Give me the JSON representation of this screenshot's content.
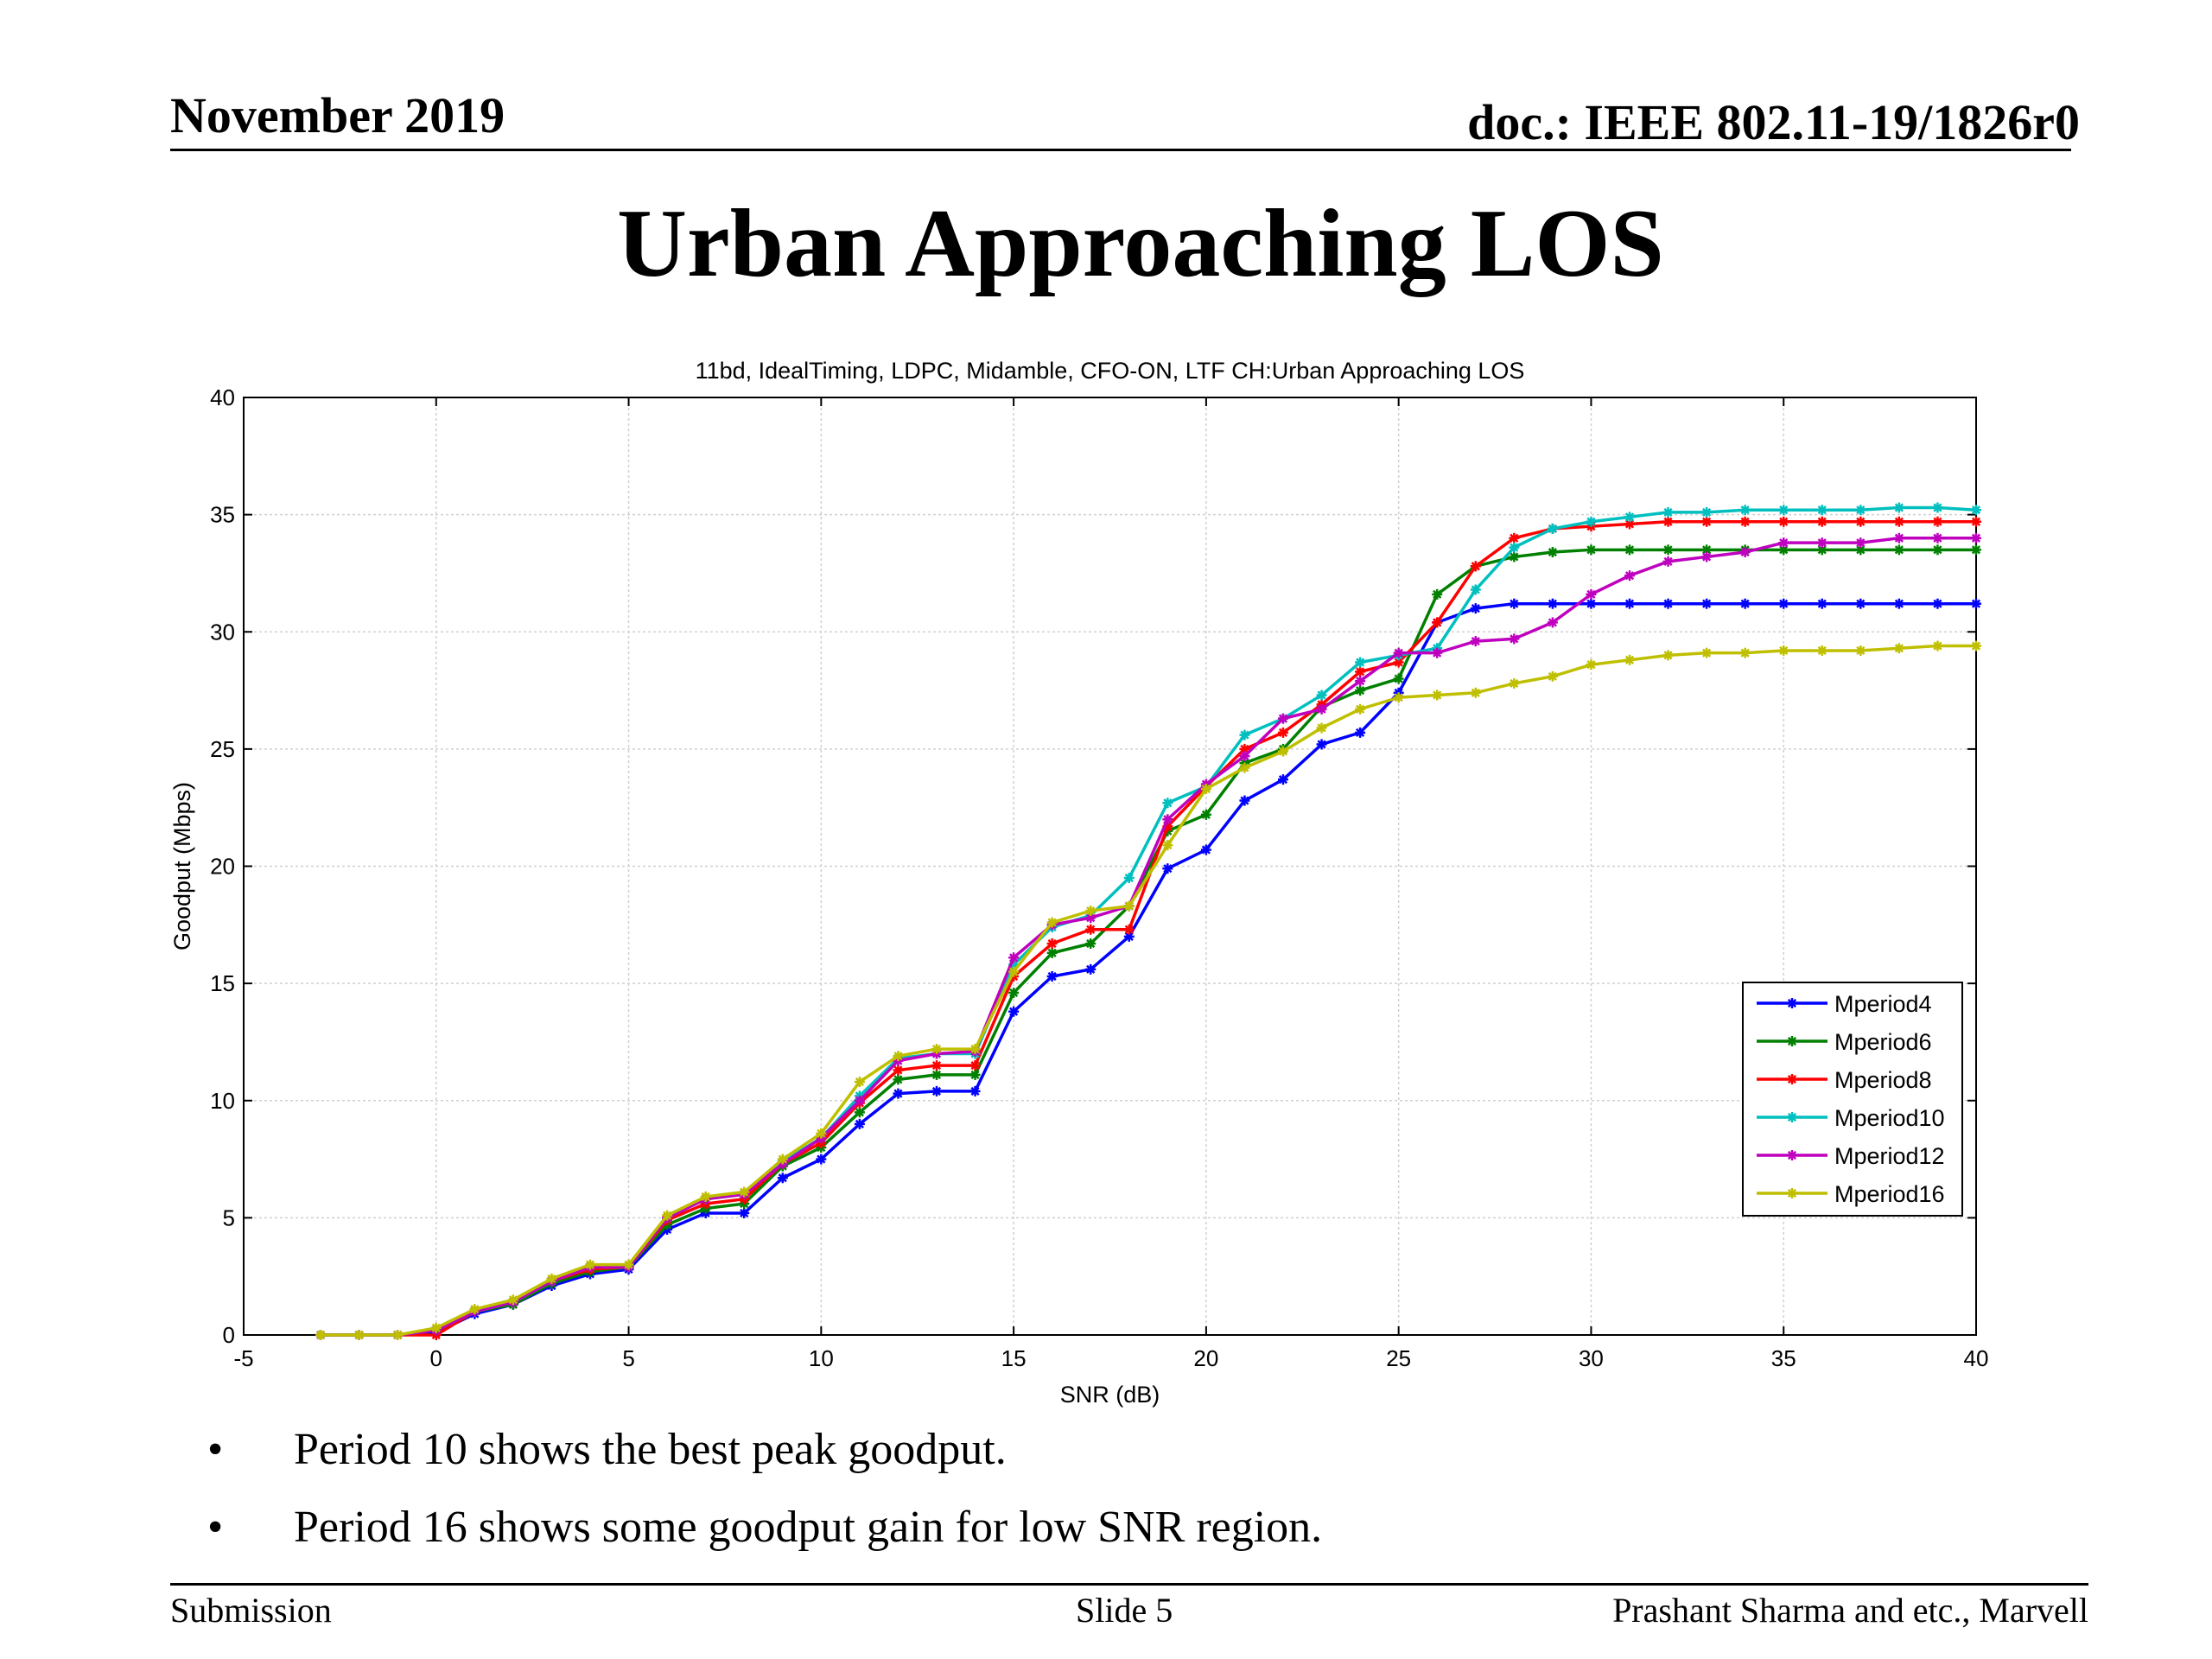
{
  "header": {
    "date": "November 2019",
    "doc": "doc.: IEEE 802.11-19/1826r0"
  },
  "slide_title": "Urban Approaching LOS",
  "bullets": [
    "Period 10 shows the best peak goodput.",
    "Period 16 shows some goodput gain for low SNR region."
  ],
  "footer": {
    "left": "Submission",
    "center": "Slide 5",
    "right": "Prashant Sharma and etc., Marvell"
  },
  "chart_data": {
    "type": "line",
    "title": "11bd, IdealTiming, LDPC, Midamble, CFO-ON, LTF CH:Urban Approaching LOS",
    "xlabel": "SNR (dB)",
    "ylabel": "Goodput (Mbps)",
    "xlim": [
      -5,
      40
    ],
    "ylim": [
      0,
      40
    ],
    "xticks": [
      -5,
      0,
      5,
      10,
      15,
      20,
      25,
      30,
      35,
      40
    ],
    "yticks": [
      0,
      5,
      10,
      15,
      20,
      25,
      30,
      35,
      40
    ],
    "grid": true,
    "legend_position": "lower-right",
    "marker": "asterisk",
    "x": [
      -3,
      -2,
      -1,
      0,
      1,
      2,
      3,
      4,
      5,
      6,
      7,
      8,
      9,
      10,
      11,
      12,
      13,
      14,
      15,
      16,
      17,
      18,
      19,
      20,
      21,
      22,
      23,
      24,
      25,
      26,
      27,
      28,
      29,
      30,
      31,
      32,
      33,
      34,
      35,
      36,
      37,
      38,
      39,
      40
    ],
    "series": [
      {
        "name": "Mperiod4",
        "color": "#0000ff",
        "values": [
          0,
          0,
          0,
          0.1,
          0.9,
          1.3,
          2.1,
          2.6,
          2.8,
          4.5,
          5.2,
          5.2,
          6.7,
          7.5,
          9.0,
          10.3,
          10.4,
          10.4,
          13.8,
          15.3,
          15.6,
          17.0,
          19.9,
          20.7,
          22.8,
          23.7,
          25.2,
          25.7,
          27.4,
          30.4,
          31.0,
          31.2,
          31.2,
          31.2,
          31.2,
          31.2,
          31.2,
          31.2,
          31.2,
          31.2,
          31.2,
          31.2,
          31.2,
          31.2
        ]
      },
      {
        "name": "Mperiod6",
        "color": "#008000",
        "values": [
          0,
          0,
          0,
          0.2,
          1.0,
          1.3,
          2.2,
          2.7,
          2.9,
          4.7,
          5.4,
          5.6,
          7.2,
          8.0,
          9.5,
          10.9,
          11.1,
          11.1,
          14.6,
          16.3,
          16.7,
          18.3,
          21.5,
          22.2,
          24.4,
          25.0,
          26.8,
          27.5,
          28.0,
          31.6,
          32.8,
          33.2,
          33.4,
          33.5,
          33.5,
          33.5,
          33.5,
          33.5,
          33.5,
          33.5,
          33.5,
          33.5,
          33.5,
          33.5
        ]
      },
      {
        "name": "Mperiod8",
        "color": "#ff0000",
        "values": [
          0,
          0,
          0,
          0,
          1.0,
          1.4,
          2.3,
          2.8,
          2.9,
          4.9,
          5.6,
          5.8,
          7.3,
          8.2,
          9.9,
          11.3,
          11.5,
          11.5,
          15.3,
          16.7,
          17.3,
          17.3,
          21.7,
          23.4,
          25.0,
          25.7,
          26.9,
          28.3,
          28.7,
          30.4,
          32.8,
          34.0,
          34.4,
          34.5,
          34.6,
          34.7,
          34.7,
          34.7,
          34.7,
          34.7,
          34.7,
          34.7,
          34.7,
          34.7
        ]
      },
      {
        "name": "Mperiod10",
        "color": "#00bfbf",
        "values": [
          0,
          0,
          0,
          0.2,
          1.0,
          1.4,
          2.3,
          2.9,
          2.9,
          5.0,
          5.8,
          6.0,
          7.4,
          8.4,
          10.2,
          11.8,
          12.0,
          12.0,
          15.8,
          17.4,
          17.9,
          19.5,
          22.7,
          23.4,
          25.6,
          26.3,
          27.3,
          28.7,
          29.0,
          29.3,
          31.8,
          33.6,
          34.4,
          34.7,
          34.9,
          35.1,
          35.1,
          35.2,
          35.2,
          35.2,
          35.2,
          35.3,
          35.3,
          35.2
        ]
      },
      {
        "name": "Mperiod12",
        "color": "#bf00bf",
        "values": [
          0,
          0,
          0,
          0.2,
          1.0,
          1.4,
          2.3,
          2.9,
          2.9,
          5.0,
          5.8,
          6.0,
          7.3,
          8.4,
          10.0,
          11.7,
          12.0,
          12.1,
          16.1,
          17.5,
          17.8,
          18.3,
          22.0,
          23.5,
          24.7,
          26.3,
          26.7,
          27.9,
          29.1,
          29.1,
          29.6,
          29.7,
          30.4,
          31.6,
          32.4,
          33.0,
          33.2,
          33.4,
          33.8,
          33.8,
          33.8,
          34.0,
          34.0,
          34.0
        ]
      },
      {
        "name": "Mperiod16",
        "color": "#bfbf00",
        "values": [
          0,
          0,
          0,
          0.3,
          1.1,
          1.5,
          2.4,
          3.0,
          3.0,
          5.1,
          5.9,
          6.1,
          7.5,
          8.6,
          10.8,
          11.9,
          12.2,
          12.2,
          15.5,
          17.6,
          18.1,
          18.3,
          20.9,
          23.3,
          24.2,
          24.9,
          25.9,
          26.7,
          27.2,
          27.3,
          27.4,
          27.8,
          28.1,
          28.6,
          28.8,
          29.0,
          29.1,
          29.1,
          29.2,
          29.2,
          29.2,
          29.3,
          29.4,
          29.4
        ]
      }
    ]
  }
}
